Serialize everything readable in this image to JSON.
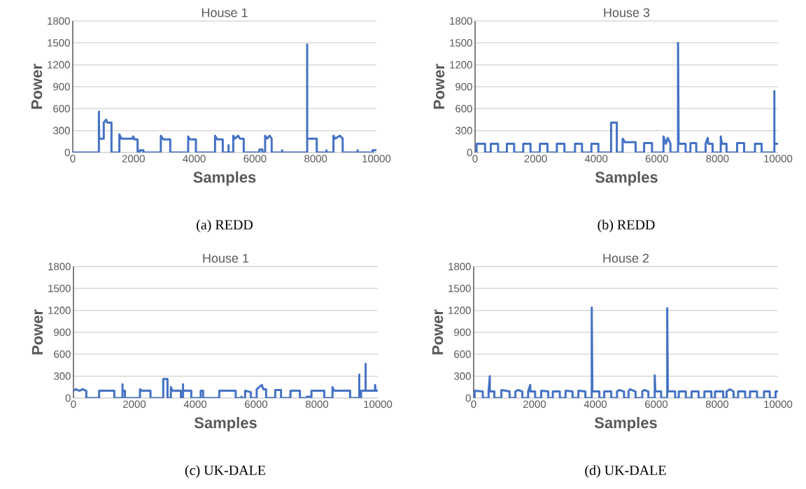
{
  "chart_data": [
    {
      "type": "line",
      "title": "House 1",
      "xlabel": "Samples",
      "ylabel": "Power",
      "color": "#4472c4",
      "grid": "y",
      "xlim": [
        0,
        10000
      ],
      "ylim": [
        0,
        1800
      ],
      "xticks": [
        0,
        2000,
        4000,
        6000,
        8000,
        10000
      ],
      "yticks": [
        0,
        300,
        600,
        900,
        1200,
        1500,
        1800
      ],
      "annotations": [
        "(a) REDD"
      ],
      "x": [
        0,
        860,
        860,
        870,
        1020,
        1020,
        1100,
        1135,
        1275,
        1275,
        1535,
        1535,
        1600,
        1960,
        1995,
        2030,
        2135,
        2135,
        2210,
        2210,
        2325,
        2325,
        2900,
        2900,
        2980,
        3210,
        3210,
        3800,
        3800,
        3860,
        4055,
        4055,
        4685,
        4685,
        4760,
        4940,
        4940,
        5130,
        5130,
        5130,
        5285,
        5285,
        5340,
        5450,
        5500,
        5630,
        5630,
        6145,
        6145,
        6245,
        6245,
        6335,
        6335,
        6400,
        6480,
        6550,
        6550,
        6895,
        6895,
        6895,
        7720,
        7720,
        7720,
        8035,
        8035,
        8355,
        8355,
        8355,
        8585,
        8585,
        8640,
        8800,
        8890,
        8890,
        9380,
        9380,
        9380,
        9875,
        9875,
        10000
      ],
      "values": [
        0,
        0,
        560,
        190,
        190,
        410,
        450,
        410,
        410,
        0,
        0,
        250,
        190,
        190,
        220,
        180,
        180,
        0,
        0,
        30,
        30,
        0,
        0,
        230,
        180,
        180,
        0,
        0,
        220,
        180,
        180,
        0,
        0,
        230,
        180,
        180,
        0,
        0,
        100,
        0,
        0,
        230,
        190,
        230,
        190,
        190,
        0,
        0,
        40,
        40,
        0,
        0,
        230,
        190,
        230,
        190,
        0,
        0,
        30,
        0,
        0,
        1480,
        190,
        190,
        0,
        0,
        30,
        0,
        0,
        230,
        190,
        230,
        190,
        0,
        0,
        30,
        0,
        0,
        30,
        30
      ]
    },
    {
      "type": "line",
      "title": "House 3",
      "xlabel": "Samples",
      "ylabel": "Power",
      "color": "#4472c4",
      "grid": "y",
      "xlim": [
        0,
        10000
      ],
      "ylim": [
        0,
        1800
      ],
      "xticks": [
        0,
        2000,
        4000,
        6000,
        8000,
        10000
      ],
      "yticks": [
        0,
        300,
        600,
        900,
        1200,
        1500,
        1800
      ],
      "annotations": [
        "(b) REDD"
      ],
      "x": [
        0,
        50,
        50,
        330,
        330,
        520,
        520,
        760,
        760,
        1050,
        1050,
        1290,
        1290,
        1590,
        1590,
        1830,
        1830,
        2140,
        2140,
        2390,
        2390,
        2700,
        2700,
        2950,
        2950,
        3300,
        3300,
        3530,
        3530,
        3840,
        3840,
        4070,
        4070,
        4490,
        4490,
        4680,
        4680,
        4870,
        4870,
        4950,
        5300,
        5300,
        5580,
        5580,
        5840,
        5840,
        6220,
        6220,
        6300,
        6360,
        6450,
        6450,
        6700,
        6700,
        6720,
        6950,
        6950,
        7110,
        7110,
        7300,
        7300,
        7610,
        7610,
        7680,
        7700,
        7840,
        7840,
        8110,
        8110,
        8150,
        8300,
        8300,
        8650,
        8650,
        8880,
        8880,
        9240,
        9240,
        9460,
        9460,
        9880,
        9880,
        9880,
        10000
      ],
      "values": [
        0,
        0,
        120,
        120,
        0,
        0,
        120,
        120,
        0,
        0,
        120,
        120,
        0,
        0,
        120,
        120,
        0,
        0,
        120,
        120,
        0,
        0,
        120,
        120,
        0,
        0,
        120,
        120,
        0,
        0,
        120,
        120,
        0,
        0,
        410,
        410,
        0,
        0,
        190,
        140,
        140,
        0,
        0,
        130,
        130,
        0,
        0,
        220,
        120,
        200,
        120,
        0,
        0,
        1500,
        120,
        120,
        0,
        0,
        130,
        130,
        0,
        0,
        120,
        200,
        120,
        120,
        0,
        0,
        220,
        120,
        120,
        0,
        0,
        130,
        130,
        0,
        0,
        120,
        120,
        0,
        0,
        840,
        120,
        120
      ]
    },
    {
      "type": "line",
      "title": "House 1",
      "xlabel": "Samples",
      "ylabel": "Power",
      "color": "#4472c4",
      "grid": "y",
      "xlim": [
        0,
        10000
      ],
      "ylim": [
        0,
        1800
      ],
      "xticks": [
        0,
        2000,
        4000,
        6000,
        8000,
        10000
      ],
      "yticks": [
        0,
        300,
        600,
        900,
        1200,
        1500,
        1800
      ],
      "annotations": [
        "(c) UK-DALE"
      ],
      "x": [
        0,
        80,
        200,
        300,
        422,
        422,
        843,
        843,
        1342,
        1342,
        1610,
        1610,
        1610,
        1690,
        1690,
        2185,
        2185,
        2250,
        2530,
        2530,
        2950,
        2950,
        3090,
        3090,
        3200,
        3200,
        3250,
        3530,
        3530,
        3600,
        3600,
        3600,
        3870,
        3870,
        4180,
        4180,
        4260,
        4260,
        4790,
        4790,
        5330,
        5330,
        5520,
        5520,
        5520,
        5640,
        5640,
        5830,
        5830,
        6020,
        6020,
        6190,
        6240,
        6330,
        6330,
        6630,
        6630,
        6820,
        6820,
        7130,
        7130,
        7440,
        7440,
        7670,
        7670,
        7780,
        7820,
        7820,
        8240,
        8240,
        8510,
        8510,
        8560,
        9090,
        9090,
        9390,
        9390,
        9390,
        9450,
        9450,
        9600,
        9600,
        9600,
        9910,
        9910,
        9930,
        10000
      ],
      "values": [
        100,
        120,
        100,
        120,
        100,
        0,
        0,
        100,
        100,
        0,
        0,
        190,
        100,
        100,
        0,
        0,
        120,
        100,
        100,
        0,
        0,
        260,
        260,
        0,
        0,
        150,
        100,
        100,
        0,
        0,
        190,
        100,
        100,
        0,
        0,
        100,
        100,
        0,
        0,
        100,
        100,
        0,
        0,
        20,
        0,
        0,
        100,
        80,
        0,
        0,
        120,
        180,
        120,
        120,
        0,
        0,
        110,
        110,
        0,
        0,
        100,
        100,
        0,
        0,
        20,
        20,
        0,
        100,
        100,
        0,
        0,
        150,
        100,
        100,
        0,
        0,
        320,
        0,
        0,
        100,
        100,
        470,
        100,
        100,
        180,
        100,
        100
      ]
    },
    {
      "type": "line",
      "title": "House 2",
      "xlabel": "Samples",
      "ylabel": "Power",
      "color": "#4472c4",
      "grid": "y",
      "xlim": [
        0,
        10000
      ],
      "ylim": [
        0,
        1800
      ],
      "xticks": [
        0,
        2000,
        4000,
        6000,
        8000,
        10000
      ],
      "yticks": [
        0,
        300,
        600,
        900,
        1200,
        1500,
        1800
      ],
      "annotations": [
        "(d) UK-DALE"
      ],
      "x": [
        0,
        30,
        30,
        300,
        300,
        490,
        490,
        530,
        530,
        680,
        680,
        910,
        910,
        1180,
        1180,
        1370,
        1370,
        1460,
        1600,
        1600,
        1790,
        1790,
        1860,
        1860,
        2020,
        2020,
        2220,
        2220,
        2450,
        2450,
        2600,
        2600,
        2830,
        2830,
        3020,
        3020,
        3250,
        3250,
        3440,
        3440,
        3670,
        3670,
        3880,
        3880,
        3900,
        4130,
        4130,
        4290,
        4290,
        4520,
        4520,
        4710,
        4710,
        4780,
        4940,
        4940,
        5090,
        5090,
        5130,
        5320,
        5320,
        5540,
        5540,
        5610,
        5740,
        5740,
        5950,
        5950,
        5970,
        6160,
        6160,
        6360,
        6360,
        6380,
        6620,
        6620,
        6740,
        6740,
        6970,
        6970,
        7160,
        7160,
        7390,
        7390,
        7580,
        7580,
        7810,
        7810,
        7930,
        7930,
        8200,
        8200,
        8310,
        8310,
        8420,
        8540,
        8540,
        8690,
        8690,
        8920,
        8920,
        9080,
        9080,
        9310,
        9310,
        9540,
        9540,
        9730,
        9730,
        9920,
        9920,
        10000
      ],
      "values": [
        0,
        0,
        100,
        90,
        0,
        0,
        90,
        300,
        90,
        90,
        0,
        0,
        110,
        90,
        0,
        0,
        90,
        110,
        90,
        0,
        0,
        90,
        180,
        90,
        90,
        0,
        0,
        100,
        90,
        0,
        0,
        90,
        90,
        0,
        0,
        100,
        90,
        0,
        0,
        100,
        90,
        0,
        0,
        1240,
        90,
        90,
        0,
        0,
        90,
        90,
        0,
        0,
        90,
        110,
        90,
        0,
        0,
        90,
        120,
        90,
        0,
        0,
        90,
        110,
        90,
        0,
        0,
        310,
        90,
        90,
        0,
        0,
        1230,
        90,
        90,
        0,
        0,
        90,
        90,
        0,
        0,
        90,
        90,
        0,
        0,
        90,
        90,
        0,
        0,
        90,
        90,
        0,
        0,
        90,
        120,
        90,
        0,
        0,
        90,
        90,
        0,
        0,
        90,
        90,
        0,
        0,
        90,
        90,
        0,
        0,
        90,
        90
      ]
    }
  ]
}
